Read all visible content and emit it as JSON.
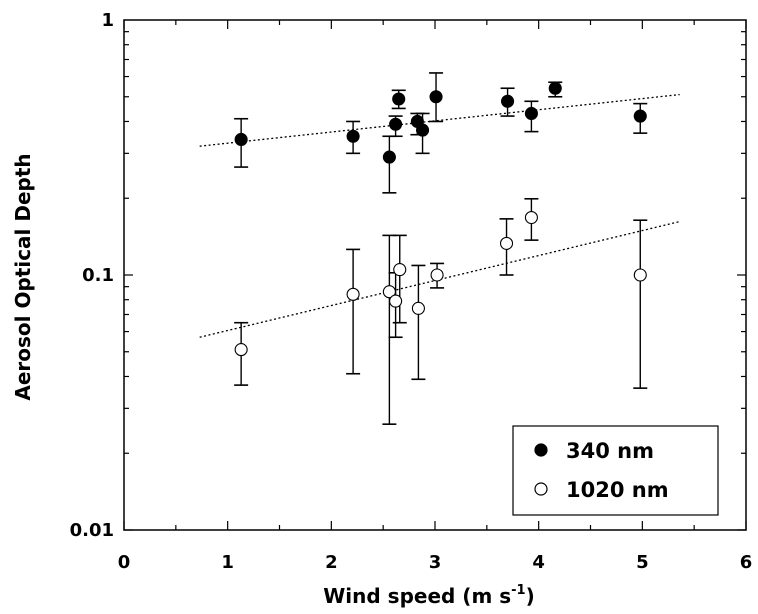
{
  "chart_data": {
    "type": "scatter",
    "xlabel": "Wind speed (m s",
    "xlabel_sup": "-1",
    "xlabel_end": ")",
    "ylabel": "Aerosol Optical Depth",
    "xlim": [
      0,
      6
    ],
    "ylim": [
      0.01,
      1
    ],
    "yscale": "log",
    "x_ticks": [
      0,
      1,
      2,
      3,
      4,
      5,
      6
    ],
    "x_tick_labels": [
      "0",
      "1",
      "2",
      "3",
      "4",
      "5",
      "6"
    ],
    "y_ticks": [
      0.01,
      0.1,
      1
    ],
    "y_tick_labels": [
      "0.01",
      "0.1",
      "1"
    ],
    "grid": false,
    "legend_position": "bottom-right",
    "series": [
      {
        "name": "340 nm",
        "marker": "filled-circle",
        "color": "#000000",
        "points": [
          {
            "x": 1.13,
            "y": 0.34,
            "lo": 0.265,
            "hi": 0.41
          },
          {
            "x": 2.21,
            "y": 0.35,
            "lo": 0.3,
            "hi": 0.4
          },
          {
            "x": 2.56,
            "y": 0.29,
            "lo": 0.21,
            "hi": 0.35
          },
          {
            "x": 2.62,
            "y": 0.39,
            "lo": 0.35,
            "hi": 0.42
          },
          {
            "x": 2.65,
            "y": 0.49,
            "lo": 0.45,
            "hi": 0.53
          },
          {
            "x": 2.83,
            "y": 0.4,
            "lo": 0.355,
            "hi": 0.43
          },
          {
            "x": 2.88,
            "y": 0.37,
            "lo": 0.3,
            "hi": 0.43
          },
          {
            "x": 3.01,
            "y": 0.5,
            "lo": 0.4,
            "hi": 0.62
          },
          {
            "x": 3.7,
            "y": 0.48,
            "lo": 0.42,
            "hi": 0.54
          },
          {
            "x": 3.93,
            "y": 0.43,
            "lo": 0.365,
            "hi": 0.48
          },
          {
            "x": 4.16,
            "y": 0.54,
            "lo": 0.5,
            "hi": 0.57
          },
          {
            "x": 4.98,
            "y": 0.42,
            "lo": 0.36,
            "hi": 0.47
          }
        ],
        "trend": {
          "x": [
            0.73,
            5.36
          ],
          "y": [
            0.32,
            0.51
          ]
        }
      },
      {
        "name": "1020 nm",
        "marker": "open-circle",
        "color": "#000000",
        "points": [
          {
            "x": 1.13,
            "y": 0.051,
            "lo": 0.037,
            "hi": 0.065
          },
          {
            "x": 2.21,
            "y": 0.084,
            "lo": 0.041,
            "hi": 0.126
          },
          {
            "x": 2.56,
            "y": 0.086,
            "lo": 0.026,
            "hi": 0.143
          },
          {
            "x": 2.62,
            "y": 0.079,
            "lo": 0.057,
            "hi": 0.102
          },
          {
            "x": 2.66,
            "y": 0.105,
            "lo": 0.065,
            "hi": 0.143
          },
          {
            "x": 2.84,
            "y": 0.074,
            "lo": 0.039,
            "hi": 0.109
          },
          {
            "x": 3.02,
            "y": 0.1,
            "lo": 0.089,
            "hi": 0.111
          },
          {
            "x": 3.69,
            "y": 0.133,
            "lo": 0.1,
            "hi": 0.166
          },
          {
            "x": 3.93,
            "y": 0.168,
            "lo": 0.137,
            "hi": 0.199
          },
          {
            "x": 4.98,
            "y": 0.1,
            "lo": 0.036,
            "hi": 0.164
          }
        ],
        "trend": {
          "x": [
            0.73,
            5.36
          ],
          "y": [
            0.057,
            0.162
          ]
        }
      }
    ]
  }
}
